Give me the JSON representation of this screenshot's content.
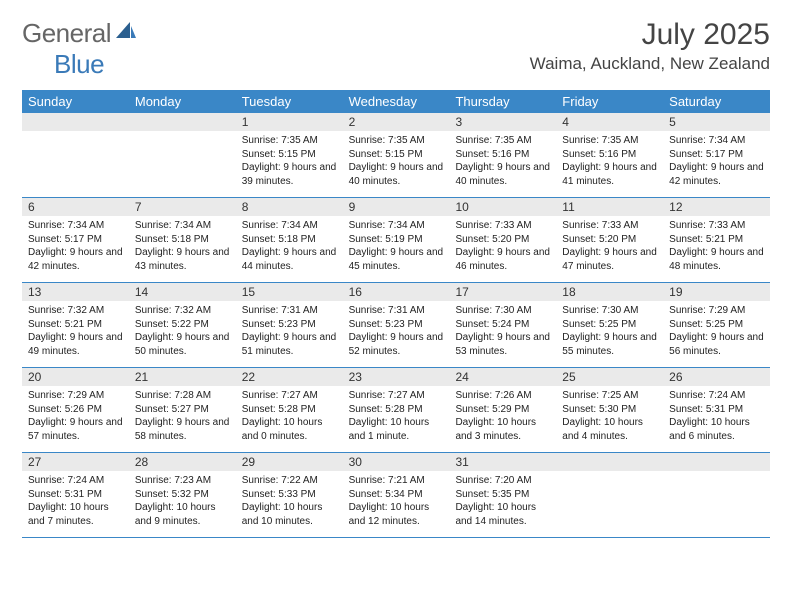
{
  "branding": {
    "logo_word1": "General",
    "logo_word2": "Blue",
    "logo_word1_color": "#666666",
    "logo_word2_color": "#3a7ab8",
    "sail_color": "#2b5f8f"
  },
  "header": {
    "title": "July 2025",
    "location": "Waima, Auckland, New Zealand"
  },
  "colors": {
    "header_bar": "#3a87c7",
    "week_divider": "#3a87c7",
    "day_num_bg": "#eaeaea",
    "background": "#ffffff",
    "text": "#222222"
  },
  "day_names": [
    "Sunday",
    "Monday",
    "Tuesday",
    "Wednesday",
    "Thursday",
    "Friday",
    "Saturday"
  ],
  "weeks": [
    [
      null,
      null,
      {
        "d": "1",
        "sr": "7:35 AM",
        "ss": "5:15 PM",
        "dl": "9 hours and 39 minutes."
      },
      {
        "d": "2",
        "sr": "7:35 AM",
        "ss": "5:15 PM",
        "dl": "9 hours and 40 minutes."
      },
      {
        "d": "3",
        "sr": "7:35 AM",
        "ss": "5:16 PM",
        "dl": "9 hours and 40 minutes."
      },
      {
        "d": "4",
        "sr": "7:35 AM",
        "ss": "5:16 PM",
        "dl": "9 hours and 41 minutes."
      },
      {
        "d": "5",
        "sr": "7:34 AM",
        "ss": "5:17 PM",
        "dl": "9 hours and 42 minutes."
      }
    ],
    [
      {
        "d": "6",
        "sr": "7:34 AM",
        "ss": "5:17 PM",
        "dl": "9 hours and 42 minutes."
      },
      {
        "d": "7",
        "sr": "7:34 AM",
        "ss": "5:18 PM",
        "dl": "9 hours and 43 minutes."
      },
      {
        "d": "8",
        "sr": "7:34 AM",
        "ss": "5:18 PM",
        "dl": "9 hours and 44 minutes."
      },
      {
        "d": "9",
        "sr": "7:34 AM",
        "ss": "5:19 PM",
        "dl": "9 hours and 45 minutes."
      },
      {
        "d": "10",
        "sr": "7:33 AM",
        "ss": "5:20 PM",
        "dl": "9 hours and 46 minutes."
      },
      {
        "d": "11",
        "sr": "7:33 AM",
        "ss": "5:20 PM",
        "dl": "9 hours and 47 minutes."
      },
      {
        "d": "12",
        "sr": "7:33 AM",
        "ss": "5:21 PM",
        "dl": "9 hours and 48 minutes."
      }
    ],
    [
      {
        "d": "13",
        "sr": "7:32 AM",
        "ss": "5:21 PM",
        "dl": "9 hours and 49 minutes."
      },
      {
        "d": "14",
        "sr": "7:32 AM",
        "ss": "5:22 PM",
        "dl": "9 hours and 50 minutes."
      },
      {
        "d": "15",
        "sr": "7:31 AM",
        "ss": "5:23 PM",
        "dl": "9 hours and 51 minutes."
      },
      {
        "d": "16",
        "sr": "7:31 AM",
        "ss": "5:23 PM",
        "dl": "9 hours and 52 minutes."
      },
      {
        "d": "17",
        "sr": "7:30 AM",
        "ss": "5:24 PM",
        "dl": "9 hours and 53 minutes."
      },
      {
        "d": "18",
        "sr": "7:30 AM",
        "ss": "5:25 PM",
        "dl": "9 hours and 55 minutes."
      },
      {
        "d": "19",
        "sr": "7:29 AM",
        "ss": "5:25 PM",
        "dl": "9 hours and 56 minutes."
      }
    ],
    [
      {
        "d": "20",
        "sr": "7:29 AM",
        "ss": "5:26 PM",
        "dl": "9 hours and 57 minutes."
      },
      {
        "d": "21",
        "sr": "7:28 AM",
        "ss": "5:27 PM",
        "dl": "9 hours and 58 minutes."
      },
      {
        "d": "22",
        "sr": "7:27 AM",
        "ss": "5:28 PM",
        "dl": "10 hours and 0 minutes."
      },
      {
        "d": "23",
        "sr": "7:27 AM",
        "ss": "5:28 PM",
        "dl": "10 hours and 1 minute."
      },
      {
        "d": "24",
        "sr": "7:26 AM",
        "ss": "5:29 PM",
        "dl": "10 hours and 3 minutes."
      },
      {
        "d": "25",
        "sr": "7:25 AM",
        "ss": "5:30 PM",
        "dl": "10 hours and 4 minutes."
      },
      {
        "d": "26",
        "sr": "7:24 AM",
        "ss": "5:31 PM",
        "dl": "10 hours and 6 minutes."
      }
    ],
    [
      {
        "d": "27",
        "sr": "7:24 AM",
        "ss": "5:31 PM",
        "dl": "10 hours and 7 minutes."
      },
      {
        "d": "28",
        "sr": "7:23 AM",
        "ss": "5:32 PM",
        "dl": "10 hours and 9 minutes."
      },
      {
        "d": "29",
        "sr": "7:22 AM",
        "ss": "5:33 PM",
        "dl": "10 hours and 10 minutes."
      },
      {
        "d": "30",
        "sr": "7:21 AM",
        "ss": "5:34 PM",
        "dl": "10 hours and 12 minutes."
      },
      {
        "d": "31",
        "sr": "7:20 AM",
        "ss": "5:35 PM",
        "dl": "10 hours and 14 minutes."
      },
      null,
      null
    ]
  ],
  "labels": {
    "sunrise_prefix": "Sunrise: ",
    "sunset_prefix": "Sunset: ",
    "daylight_prefix": "Daylight: "
  }
}
